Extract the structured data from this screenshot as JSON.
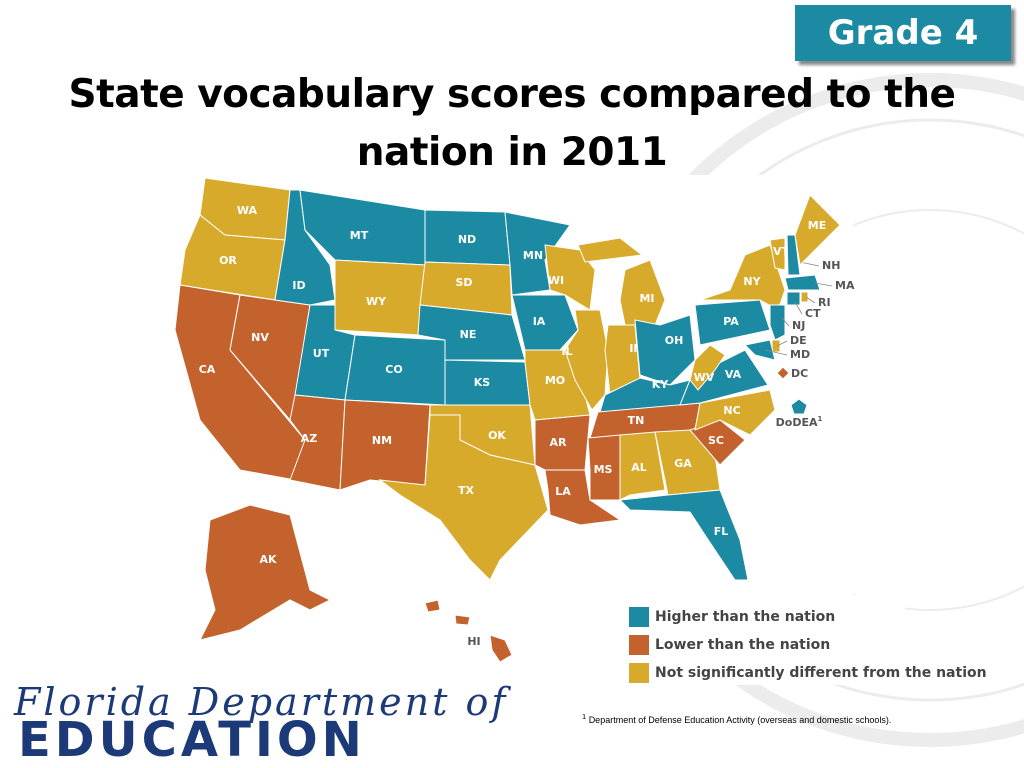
{
  "badge": "Grade 4",
  "title": "State vocabulary scores compared to the nation in 2011",
  "map": {
    "regions": [
      {
        "label": "WA",
        "status": "Not significantly different from the nation"
      },
      {
        "label": "OR",
        "status": "Not significantly different from the nation"
      },
      {
        "label": "CA",
        "status": "Lower than the nation"
      },
      {
        "label": "NV",
        "status": "Lower than the nation"
      },
      {
        "label": "ID",
        "status": "Higher than the nation"
      },
      {
        "label": "MT",
        "status": "Higher than the nation"
      },
      {
        "label": "WY",
        "status": "Not significantly different from the nation"
      },
      {
        "label": "UT",
        "status": "Higher than the nation"
      },
      {
        "label": "CO",
        "status": "Higher than the nation"
      },
      {
        "label": "AZ",
        "status": "Lower than the nation"
      },
      {
        "label": "NM",
        "status": "Lower than the nation"
      },
      {
        "label": "ND",
        "status": "Higher than the nation"
      },
      {
        "label": "SD",
        "status": "Not significantly different from the nation"
      },
      {
        "label": "NE",
        "status": "Higher than the nation"
      },
      {
        "label": "KS",
        "status": "Higher than the nation"
      },
      {
        "label": "OK",
        "status": "Not significantly different from the nation"
      },
      {
        "label": "TX",
        "status": "Not significantly different from the nation"
      },
      {
        "label": "MN",
        "status": "Higher than the nation"
      },
      {
        "label": "IA",
        "status": "Higher than the nation"
      },
      {
        "label": "MO",
        "status": "Not significantly different from the nation"
      },
      {
        "label": "AR",
        "status": "Lower than the nation"
      },
      {
        "label": "LA",
        "status": "Lower than the nation"
      },
      {
        "label": "WI",
        "status": "Not significantly different from the nation"
      },
      {
        "label": "IL",
        "status": "Not significantly different from the nation"
      },
      {
        "label": "MI",
        "status": "Not significantly different from the nation"
      },
      {
        "label": "IN",
        "status": "Not significantly different from the nation"
      },
      {
        "label": "OH",
        "status": "Higher than the nation"
      },
      {
        "label": "KY",
        "status": "Higher than the nation"
      },
      {
        "label": "TN",
        "status": "Lower than the nation"
      },
      {
        "label": "MS",
        "status": "Lower than the nation"
      },
      {
        "label": "AL",
        "status": "Not significantly different from the nation"
      },
      {
        "label": "GA",
        "status": "Not significantly different from the nation"
      },
      {
        "label": "FL",
        "status": "Higher than the nation"
      },
      {
        "label": "SC",
        "status": "Lower than the nation"
      },
      {
        "label": "NC",
        "status": "Not significantly different from the nation"
      },
      {
        "label": "VA",
        "status": "Higher than the nation"
      },
      {
        "label": "WV",
        "status": "Not significantly different from the nation"
      },
      {
        "label": "PA",
        "status": "Higher than the nation"
      },
      {
        "label": "NY",
        "status": "Not significantly different from the nation"
      },
      {
        "label": "VT",
        "status": "Not significantly different from the nation"
      },
      {
        "label": "NH",
        "status": "Higher than the nation"
      },
      {
        "label": "ME",
        "status": "Not significantly different from the nation"
      },
      {
        "label": "MA",
        "status": "Higher than the nation"
      },
      {
        "label": "CT",
        "status": "Higher than the nation"
      },
      {
        "label": "RI",
        "status": "Not significantly different from the nation"
      },
      {
        "label": "NJ",
        "status": "Higher than the nation"
      },
      {
        "label": "DE",
        "status": "Not significantly different from the nation"
      },
      {
        "label": "MD",
        "status": "Higher than the nation"
      },
      {
        "label": "DC",
        "status": "Lower than the nation"
      },
      {
        "label": "AK",
        "status": "Lower than the nation"
      },
      {
        "label": "HI",
        "status": "Lower than the nation"
      },
      {
        "label": "DoDEA",
        "status": "Higher than the nation"
      }
    ]
  },
  "legend": [
    {
      "label": "Higher than the nation",
      "color": "#1b8aa2"
    },
    {
      "label": "Lower than the nation",
      "color": "#c4622d"
    },
    {
      "label": "Not significantly different from the nation",
      "color": "#d8aa2b"
    }
  ],
  "footnote": {
    "marker": "1",
    "text": "Department of Defense Education Activity (overseas and domestic schools)."
  },
  "logo": {
    "line1": "Florida Department of",
    "line2": "EDUCATION"
  }
}
